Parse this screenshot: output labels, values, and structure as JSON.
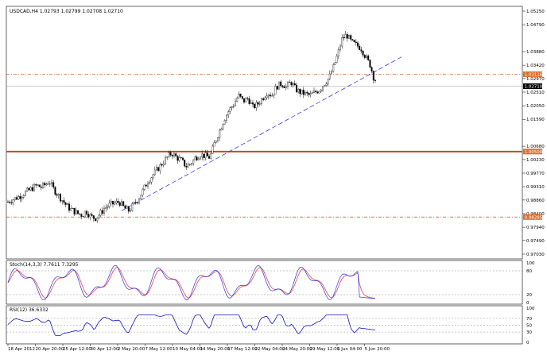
{
  "main_chart": {
    "title": "USDCAD,H4  1.02793 1.02799 1.02708 1.02710",
    "y_ticks": [
      "1.05250",
      "1.04790",
      "1.03880",
      "1.03420",
      "1.02970",
      "1.02510",
      "1.02050",
      "1.01590",
      "1.00680",
      "1.00230",
      "0.99770",
      "0.99310",
      "0.98860",
      "0.98400",
      "0.97940",
      "0.97490",
      "0.97030"
    ],
    "price_tags": [
      {
        "label": "1.03116",
        "color": "#e06b2a"
      },
      {
        "label": "1.02710",
        "color": "#000000"
      },
      {
        "label": "1.00500",
        "color": "#e06b2a"
      },
      {
        "label": "0.98285",
        "color": "#e06b2a"
      }
    ],
    "level_color": "#b8501c",
    "trendline_color": "#3a3ad8"
  },
  "stoch": {
    "title": "Stoch(14,3,3) 7.7611 7.3295",
    "y_ticks": [
      "100",
      "80",
      "20",
      "0"
    ],
    "main_color": "#3030e0",
    "signal_color": "#e03030"
  },
  "rsi": {
    "title": "RSI(12) 36.6332",
    "y_ticks": [
      "100",
      "70",
      "50",
      "30",
      "0"
    ],
    "color": "#1010c0"
  },
  "x_axis": {
    "labels": [
      "18 Apr 2012",
      "20 Apr 20:00",
      "25 Apr 12:00",
      "30 Apr 12:00",
      "2 May 20:00",
      "7 May 12:00",
      "10 May 04:00",
      "14 May 20:00",
      "17 May 12:00",
      "22 May 04:00",
      "24 May 20:00",
      "29 May 12:00",
      "1 Jun 04:00",
      "5 Jun 20:00"
    ]
  },
  "chart_data": {
    "type": "candlestick",
    "symbol": "USDCAD",
    "timeframe": "H4",
    "ohlc": [
      1.02793,
      1.02799,
      1.02708,
      1.0271
    ],
    "close_path": [
      [
        0,
        0.988
      ],
      [
        6,
        0.9888
      ],
      [
        12,
        0.9895
      ],
      [
        18,
        0.9905
      ],
      [
        24,
        0.9915
      ],
      [
        30,
        0.9925
      ],
      [
        36,
        0.9935
      ],
      [
        42,
        0.993
      ],
      [
        48,
        0.994
      ],
      [
        52,
        0.995
      ],
      [
        58,
        0.992
      ],
      [
        64,
        0.99
      ],
      [
        70,
        0.988
      ],
      [
        76,
        0.986
      ],
      [
        82,
        0.985
      ],
      [
        88,
        0.984
      ],
      [
        94,
        0.9835
      ],
      [
        98,
        0.985
      ],
      [
        104,
        0.983
      ],
      [
        110,
        0.9825
      ],
      [
        116,
        0.984
      ],
      [
        122,
        0.986
      ],
      [
        128,
        0.987
      ],
      [
        134,
        0.9875
      ],
      [
        140,
        0.988
      ],
      [
        146,
        0.986
      ],
      [
        152,
        0.985
      ],
      [
        158,
        0.987
      ],
      [
        164,
        0.989
      ],
      [
        170,
        0.992
      ],
      [
        176,
        0.995
      ],
      [
        182,
        0.997
      ],
      [
        188,
        0.999
      ],
      [
        194,
        1.001
      ],
      [
        200,
        1.003
      ],
      [
        206,
        1.0045
      ],
      [
        212,
        1.003
      ],
      [
        218,
        1.002
      ],
      [
        224,
        1.0
      ],
      [
        230,
        1.001
      ],
      [
        236,
        1.003
      ],
      [
        242,
        1.004
      ],
      [
        248,
        1.0035
      ],
      [
        254,
        1.003
      ],
      [
        260,
        1.008
      ],
      [
        266,
        1.012
      ],
      [
        272,
        1.016
      ],
      [
        278,
        1.019
      ],
      [
        284,
        1.021
      ],
      [
        290,
        1.024
      ],
      [
        296,
        1.022
      ],
      [
        302,
        1.023
      ],
      [
        308,
        1.02
      ],
      [
        314,
        1.021
      ],
      [
        320,
        1.023
      ],
      [
        326,
        1.025
      ],
      [
        332,
        1.024
      ],
      [
        338,
        1.027
      ],
      [
        344,
        1.028
      ],
      [
        350,
        1.027
      ],
      [
        356,
        1.0285
      ],
      [
        362,
        1.026
      ],
      [
        368,
        1.025
      ],
      [
        374,
        1.0245
      ],
      [
        380,
        1.024
      ],
      [
        386,
        1.025
      ],
      [
        392,
        1.026
      ],
      [
        398,
        1.028
      ],
      [
        404,
        1.03
      ],
      [
        410,
        1.034
      ],
      [
        416,
        1.039
      ],
      [
        420,
        1.043
      ],
      [
        426,
        1.0445
      ],
      [
        432,
        1.042
      ],
      [
        438,
        1.041
      ],
      [
        444,
        1.04
      ],
      [
        450,
        1.037
      ],
      [
        456,
        1.034
      ],
      [
        460,
        1.03
      ],
      [
        464,
        1.0285
      ],
      [
        468,
        1.0275
      ]
    ],
    "horizontal_levels": [
      1.03116,
      1.0271,
      1.005,
      0.98285
    ],
    "trendlines": [
      {
        "from": [
          153,
          0.985
        ],
        "to": [
          505,
          1.037
        ],
        "style": "dashed"
      }
    ],
    "y_range": [
      0.9703,
      1.0525
    ],
    "indicators": {
      "stochastic": {
        "params": "14,3,3",
        "main": 7.7611,
        "signal": 7.3295,
        "levels": [
          80,
          20
        ],
        "range": [
          0,
          100
        ]
      },
      "rsi": {
        "period": 12,
        "value": 36.6332,
        "levels": [
          70,
          50,
          30
        ],
        "range": [
          0,
          100
        ]
      }
    }
  }
}
